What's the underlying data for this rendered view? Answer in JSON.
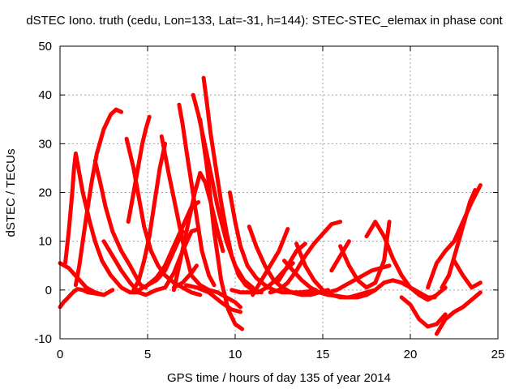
{
  "chart_data": {
    "type": "line",
    "title": "dSTEC Iono. truth (cedu, Lon=133, Lat=-31, h=144): STEC-STEC_elemax in phase cont",
    "xlabel": "GPS time / hours of day 135 of year 2014",
    "ylabel": "dSTEC  / TECUs",
    "xlim": [
      0,
      25
    ],
    "ylim": [
      -10,
      50
    ],
    "xticks": [
      "0",
      "5",
      "10",
      "15",
      "20",
      "25"
    ],
    "yticks": [
      "-10",
      "0",
      "10",
      "20",
      "30",
      "40",
      "50"
    ],
    "grid": true,
    "marker": "plus",
    "colors": {
      "series": "#ff0000",
      "grid": "#a0a0a0",
      "axis": "#000000"
    },
    "series": [
      {
        "x": [
          0,
          0.2,
          0.4,
          0.6,
          0.8,
          1.0,
          1.3,
          1.6,
          2.0,
          2.5
        ],
        "y": [
          -3.5,
          -2.5,
          -1.8,
          -1.0,
          -0.3,
          0.2,
          0.0,
          -0.5,
          -0.7,
          -1.0
        ]
      },
      {
        "x": [
          0.3,
          0.5,
          0.7,
          0.8,
          0.9,
          1.0,
          1.3,
          1.7,
          2.0,
          2.4,
          2.9,
          3.5,
          4.0,
          4.5
        ],
        "y": [
          5.5,
          12,
          20,
          25,
          28,
          26,
          20,
          14,
          10,
          6,
          3,
          0.5,
          -0.5,
          -0.5
        ]
      },
      {
        "x": [
          0,
          0.5,
          1.0,
          1.5,
          2.0,
          2.5,
          3.0
        ],
        "y": [
          5.5,
          4.5,
          2.5,
          0.5,
          -0.5,
          -1.0,
          0.0
        ]
      },
      {
        "x": [
          0.9,
          1.1,
          1.3,
          1.5,
          1.8,
          2.1,
          2.5,
          2.9,
          3.2,
          3.5
        ],
        "y": [
          1.0,
          5,
          10,
          15,
          22,
          28,
          33,
          36,
          37,
          36.5
        ]
      },
      {
        "x": [
          2.0,
          2.3,
          2.6,
          3.0,
          3.5,
          4.0,
          4.3,
          4.6,
          4.9
        ],
        "y": [
          26.5,
          22,
          17,
          12,
          8,
          5,
          3,
          1,
          0.5
        ]
      },
      {
        "x": [
          2.5,
          3.0,
          3.5,
          4.0,
          4.5,
          4.9,
          5.2,
          5.5
        ],
        "y": [
          10,
          7,
          4,
          1.5,
          -0.5,
          -1.0,
          -0.5,
          0.0
        ]
      },
      {
        "x": [
          3.8,
          4.2,
          4.5,
          4.8,
          5.2,
          5.6,
          6.0,
          6.5,
          7.0,
          7.5,
          8.0
        ],
        "y": [
          31,
          25,
          19,
          13,
          8,
          5,
          3,
          1.5,
          0.5,
          -0.5,
          -1.0
        ]
      },
      {
        "x": [
          3.9,
          4.1,
          4.3,
          4.5,
          4.7,
          4.9,
          5.1
        ],
        "y": [
          14,
          18,
          22,
          26,
          30,
          33,
          35.5
        ]
      },
      {
        "x": [
          4.2,
          4.5,
          4.8,
          5.1,
          5.4,
          5.7,
          6.0
        ],
        "y": [
          0,
          2,
          6,
          11,
          18,
          25,
          30
        ]
      },
      {
        "x": [
          4.5,
          5.0,
          5.5,
          6.0,
          6.5,
          7.0,
          7.5,
          7.9
        ],
        "y": [
          0,
          1.0,
          2.5,
          5,
          9,
          13,
          17,
          18
        ]
      },
      {
        "x": [
          5.0,
          5.5,
          6.0,
          6.5,
          7.0
        ],
        "y": [
          1.0,
          2.0,
          4.0,
          8.0,
          12.0
        ]
      },
      {
        "x": [
          5.8,
          6.2,
          6.6,
          7.0,
          7.5,
          8.0,
          8.5,
          9.0,
          9.5,
          10.0,
          10.3
        ],
        "y": [
          31.5,
          24,
          17,
          10,
          3,
          1.0,
          0.0,
          -0.5,
          -1.5,
          -2.5,
          -3.5
        ]
      },
      {
        "x": [
          5.5,
          6.0,
          6.5,
          7.0,
          7.5,
          7.9
        ],
        "y": [
          0,
          0.5,
          3.5,
          8,
          12,
          12.5
        ]
      },
      {
        "x": [
          6.8,
          7.0,
          7.2,
          7.5,
          7.8,
          8.1,
          8.5,
          8.8
        ],
        "y": [
          38,
          34,
          29,
          22,
          15,
          8,
          3.0,
          1.0
        ]
      },
      {
        "x": [
          6.5,
          6.8,
          7.1,
          7.4,
          7.7,
          8.0,
          8.3,
          8.6,
          9.0,
          9.3
        ],
        "y": [
          0,
          5,
          10,
          15,
          20,
          24,
          22,
          18,
          12,
          8
        ]
      },
      {
        "x": [
          6.5,
          7.0,
          7.5,
          7.8
        ],
        "y": [
          0.5,
          1.5,
          3.5,
          5.0
        ]
      },
      {
        "x": [
          7.2,
          7.8,
          8.5,
          9.2,
          9.8,
          10.3
        ],
        "y": [
          1.0,
          0.5,
          -0.5,
          -2.5,
          -4.0,
          -4.5
        ]
      },
      {
        "x": [
          7.6,
          7.9,
          8.2,
          8.6,
          9.0,
          9.5,
          10.0,
          10.5,
          11.0
        ],
        "y": [
          40,
          36,
          31,
          24,
          17,
          10,
          5,
          2,
          0.5
        ]
      },
      {
        "x": [
          8.2,
          8.4,
          8.6,
          8.9,
          9.2,
          9.5,
          9.8,
          10.2,
          10.6,
          11.0,
          11.5
        ],
        "y": [
          43.5,
          38,
          32,
          25,
          18,
          12,
          7,
          3,
          1.0,
          0.0,
          -0.5
        ]
      },
      {
        "x": [
          8.0,
          8.4,
          8.8,
          9.2,
          9.6,
          10.0,
          10.4
        ],
        "y": [
          35,
          25,
          12,
          2,
          -4,
          -7,
          -8
        ]
      },
      {
        "x": [
          9.7,
          10.0,
          10.3,
          10.7,
          11.2,
          11.7,
          12.2,
          12.7,
          13.2,
          13.7,
          14.2,
          14.6
        ],
        "y": [
          20,
          14,
          9,
          5,
          2.5,
          1.0,
          0.0,
          -0.5,
          -0.5,
          -0.5,
          -0.3,
          0.0
        ]
      },
      {
        "x": [
          9.8,
          10.3,
          10.8,
          11.3,
          11.8,
          12.3,
          12.8,
          13.3
        ],
        "y": [
          0,
          -0.5,
          -0.5,
          -0.5,
          0.5,
          2,
          4,
          5.5
        ]
      },
      {
        "x": [
          10.8,
          11.2,
          11.7,
          12.2,
          12.7,
          13.2,
          13.8,
          14.3,
          14.8,
          15.3
        ],
        "y": [
          13,
          9,
          5,
          2,
          0.5,
          -0.5,
          -1.0,
          -1.0,
          -0.5,
          0.0
        ]
      },
      {
        "x": [
          11.0,
          11.5,
          12.0,
          12.5,
          13.0
        ],
        "y": [
          -1.0,
          2.0,
          5.0,
          8.0,
          12.5
        ]
      },
      {
        "x": [
          12.0,
          12.5,
          13.0,
          13.5,
          14.0,
          14.5,
          15.0,
          15.5,
          16.0
        ],
        "y": [
          -0.5,
          0.0,
          1.5,
          4.0,
          7.0,
          9.5,
          11.5,
          13.5,
          14.0
        ]
      },
      {
        "x": [
          12.5,
          13.0,
          13.5,
          14.0
        ],
        "y": [
          2.0,
          5.0,
          8.0,
          9.5
        ]
      },
      {
        "x": [
          12.8,
          13.3,
          13.8,
          14.3,
          14.8,
          15.3,
          15.8,
          16.3
        ],
        "y": [
          6.0,
          4.0,
          2.0,
          0.5,
          -0.5,
          -1.0,
          -1.2,
          -1.5
        ]
      },
      {
        "x": [
          13.5,
          14.0,
          14.5,
          15.0,
          15.5,
          16.0,
          16.5,
          17.0,
          17.5,
          18.0
        ],
        "y": [
          9.5,
          5.0,
          2.0,
          0.0,
          -1.0,
          -1.5,
          -1.5,
          -1.0,
          -0.5,
          0.0
        ]
      },
      {
        "x": [
          15.3,
          15.8,
          16.3,
          16.8,
          17.3,
          17.8,
          18.3,
          18.8
        ],
        "y": [
          -0.5,
          0.0,
          1.0,
          2.0,
          3.0,
          4.0,
          4.5,
          5.0
        ]
      },
      {
        "x": [
          15.5,
          16.0,
          16.5
        ],
        "y": [
          4.0,
          7.0,
          10.0
        ]
      },
      {
        "x": [
          16.0,
          16.5,
          17.0,
          17.5,
          18.0,
          18.5,
          18.8
        ],
        "y": [
          9.0,
          5.0,
          2.0,
          0.5,
          1.5,
          6.0,
          14.0
        ]
      },
      {
        "x": [
          16.5,
          17.0,
          17.5,
          18.0,
          18.5,
          19.0,
          19.5,
          20.0,
          20.5,
          21.0,
          21.4
        ],
        "y": [
          -1.5,
          -1.5,
          -1.0,
          0.0,
          1.5,
          2.0,
          1.5,
          0.5,
          -0.5,
          -1.5,
          -1.5
        ]
      },
      {
        "x": [
          17.5,
          18.0,
          18.5,
          19.0,
          19.5,
          20.0,
          20.5,
          21.0,
          21.5,
          22.0
        ],
        "y": [
          11,
          14,
          11,
          6.5,
          3.0,
          0.5,
          -1.0,
          -2.0,
          -1.0,
          0.5
        ]
      },
      {
        "x": [
          19.5,
          20.0,
          20.5,
          21.0,
          21.5,
          22.0
        ],
        "y": [
          -1.5,
          -3.0,
          -6.0,
          -7.5,
          -7.0,
          -5.0
        ]
      },
      {
        "x": [
          21.0,
          21.5,
          22.0,
          22.5,
          23.0,
          23.5,
          24.0
        ],
        "y": [
          0.5,
          5.5,
          8.0,
          10.0,
          14.0,
          18.0,
          21.5
        ]
      },
      {
        "x": [
          21.5,
          22.0,
          22.5,
          23.0,
          23.5,
          24.0
        ],
        "y": [
          -9.0,
          -6.0,
          -4.5,
          -3.5,
          -2.0,
          -0.5
        ]
      },
      {
        "x": [
          21.8,
          22.2,
          22.6,
          23.0,
          23.4,
          23.7
        ],
        "y": [
          0.5,
          3.0,
          8.0,
          13.0,
          18.0,
          20.5
        ]
      },
      {
        "x": [
          22.5,
          23.0,
          23.5,
          24.0
        ],
        "y": [
          6.0,
          3.0,
          0.5,
          1.5
        ]
      }
    ]
  }
}
